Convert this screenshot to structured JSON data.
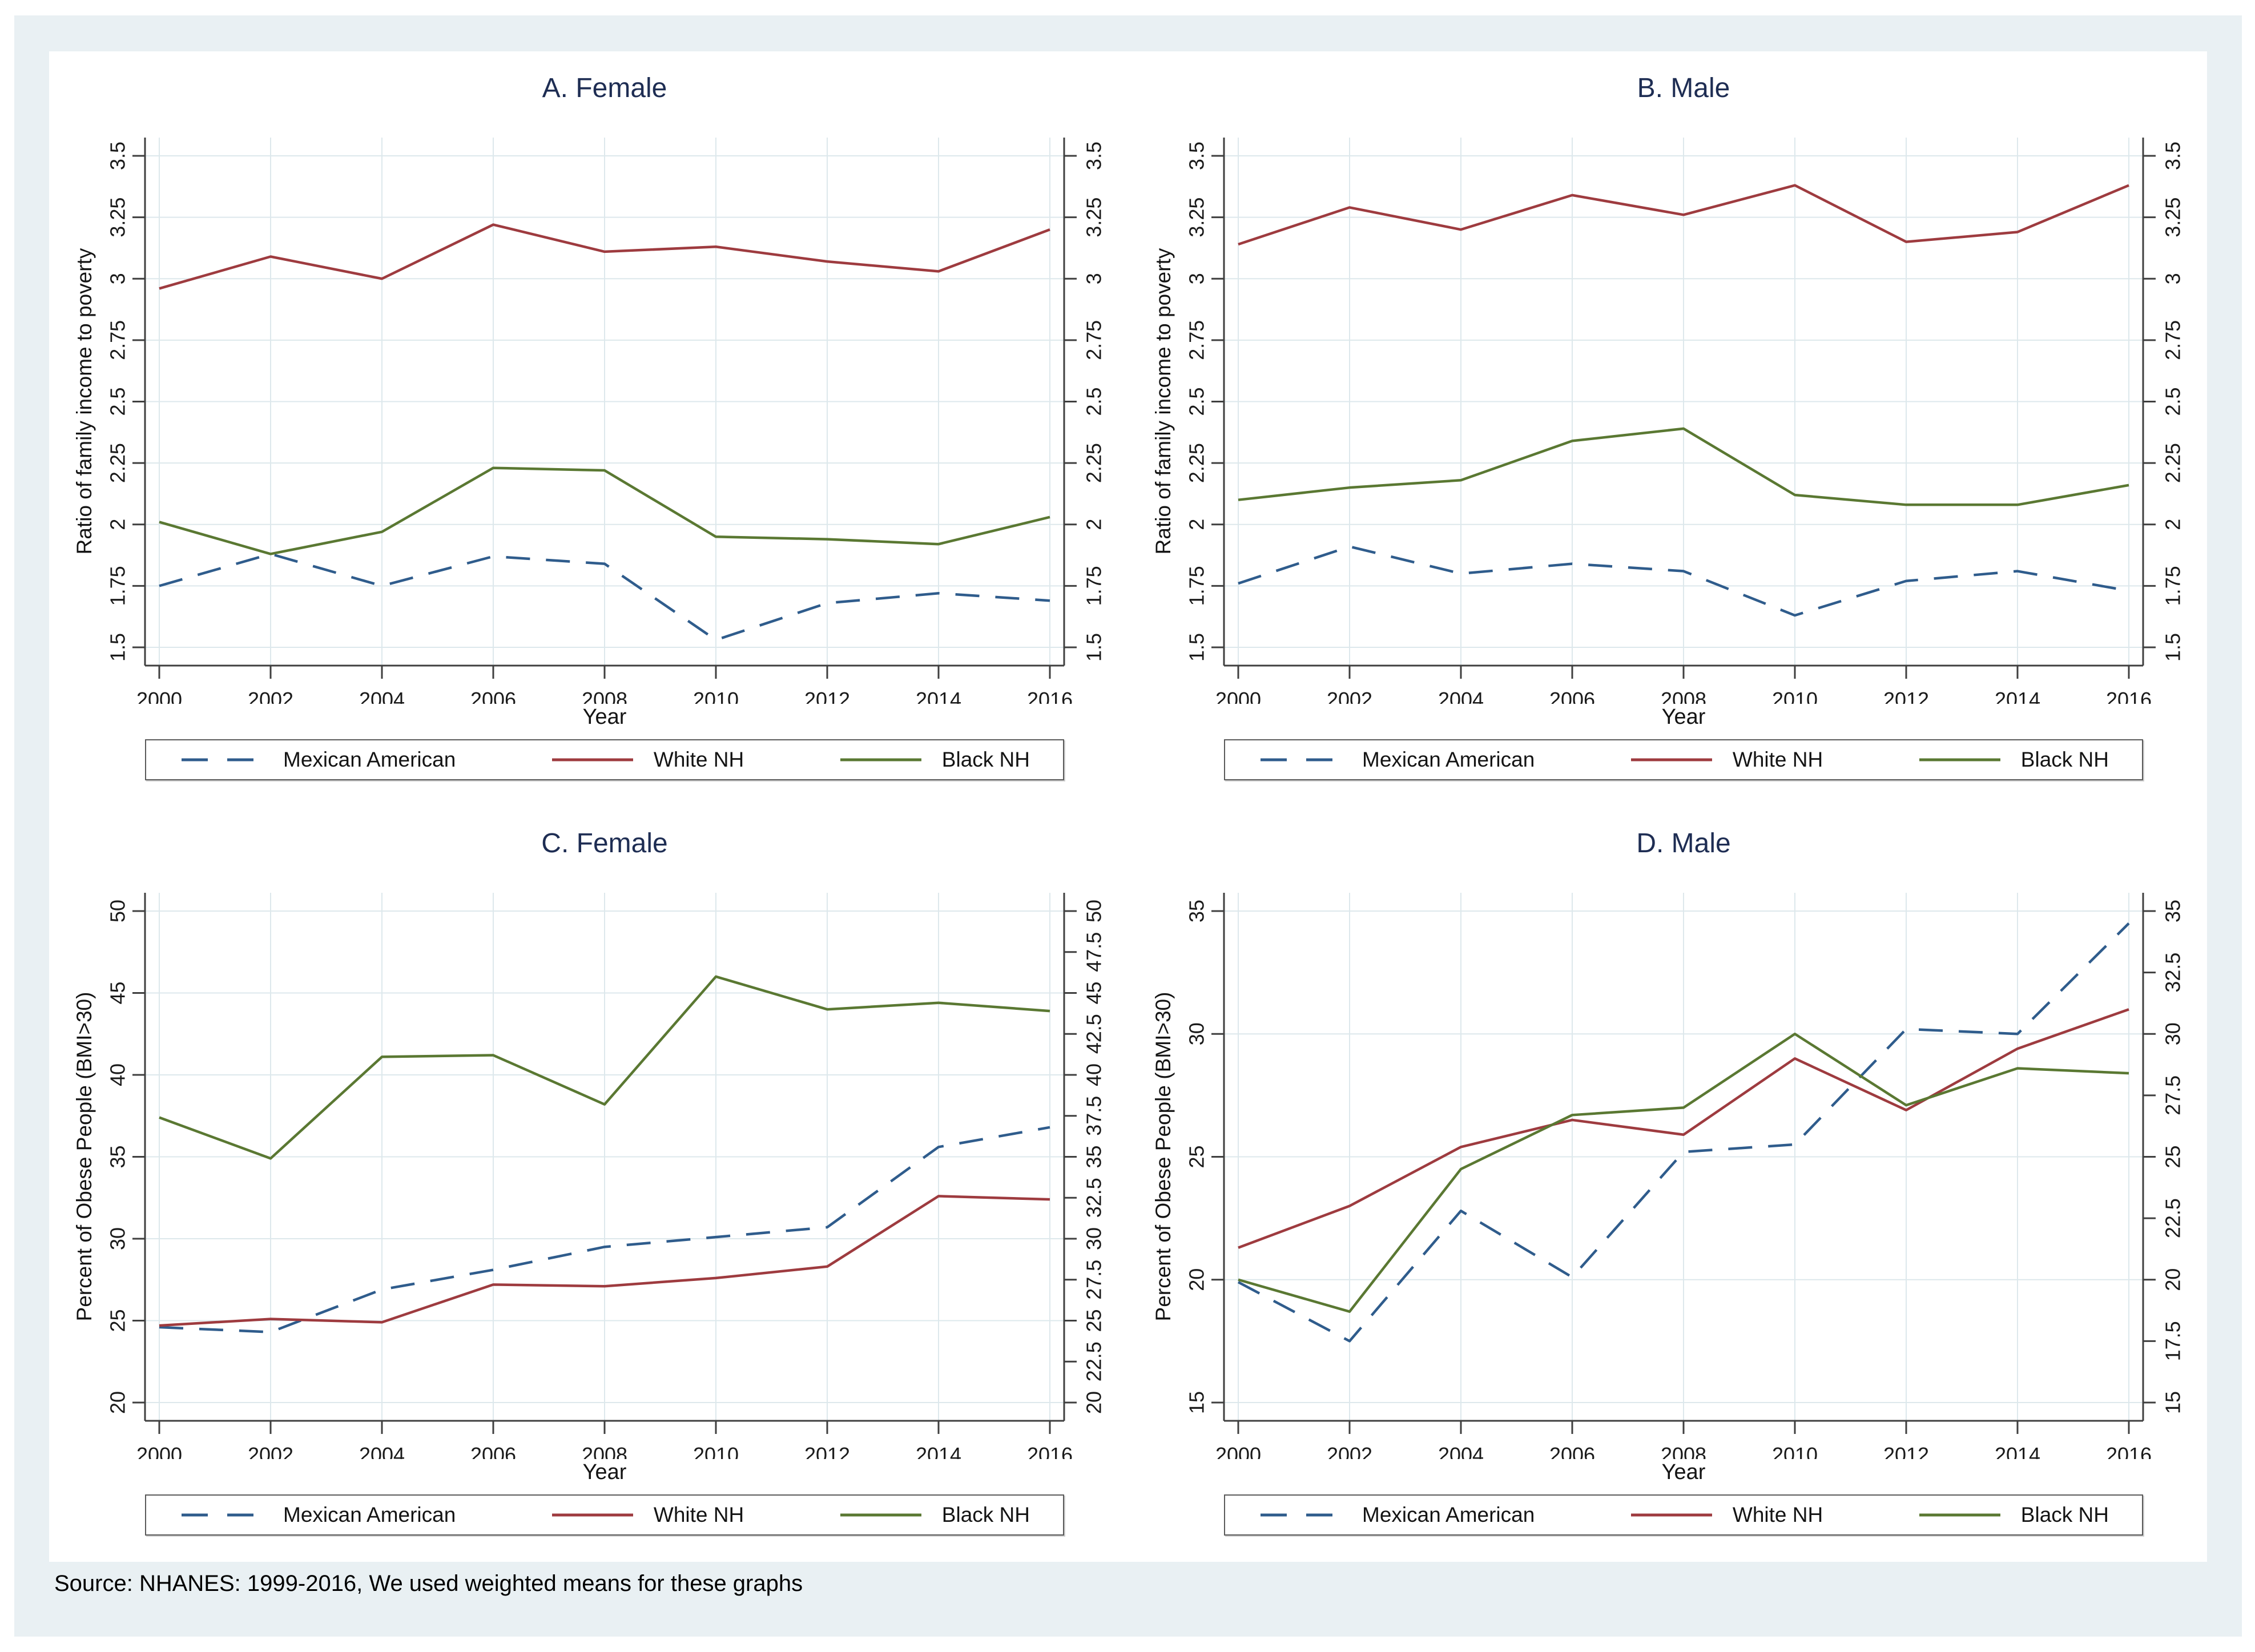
{
  "figure": {
    "background_color": "#e9f0f3",
    "plot_background": "#ffffff",
    "axis_color": "#3f3f3f",
    "grid_color": "#dde8ec",
    "title_color": "#1e2d53",
    "source_note": "Source: NHANES: 1999-2016, We used weighted means for these graphs"
  },
  "legend": {
    "position": "bottom",
    "items": [
      {
        "label": "Mexican American",
        "series_key": "mexican_american"
      },
      {
        "label": "White NH",
        "series_key": "white_nh"
      },
      {
        "label": "Black NH",
        "series_key": "black_nh"
      }
    ]
  },
  "series_styles": {
    "mexican_american": {
      "color": "#2f5c8c",
      "dashed": true
    },
    "white_nh": {
      "color": "#9e3b3f",
      "dashed": false
    },
    "black_nh": {
      "color": "#5a7832",
      "dashed": false
    }
  },
  "chart_data": [
    {
      "id": "A",
      "type": "line",
      "title": "A. Female",
      "xlabel": "Year",
      "ylabel": "Ratio of family income to poverty",
      "x": [
        2000,
        2002,
        2004,
        2006,
        2008,
        2010,
        2012,
        2014,
        2016
      ],
      "xticks": [
        2000,
        2002,
        2004,
        2006,
        2008,
        2010,
        2012,
        2014,
        2016
      ],
      "ylim": [
        1.5,
        3.5
      ],
      "yticks_left": [
        1.5,
        1.75,
        2,
        2.25,
        2.5,
        2.75,
        3,
        3.25,
        3.5
      ],
      "yticks_right": [
        1.5,
        1.75,
        2,
        2.25,
        2.5,
        2.75,
        3,
        3.25,
        3.5
      ],
      "grid_y": [
        1.5,
        1.75,
        2,
        2.25,
        2.5,
        2.75,
        3,
        3.25,
        3.5
      ],
      "grid_on": true,
      "series": [
        {
          "name": "Mexican American",
          "key": "mexican_american",
          "values": [
            1.75,
            1.88,
            1.75,
            1.87,
            1.84,
            1.53,
            1.68,
            1.72,
            1.69
          ]
        },
        {
          "name": "White NH",
          "key": "white_nh",
          "values": [
            2.96,
            3.09,
            3.0,
            3.22,
            3.11,
            3.13,
            3.07,
            3.03,
            3.2
          ]
        },
        {
          "name": "Black NH",
          "key": "black_nh",
          "values": [
            2.01,
            1.88,
            1.97,
            2.23,
            2.22,
            1.95,
            1.94,
            1.92,
            2.03
          ]
        }
      ]
    },
    {
      "id": "B",
      "type": "line",
      "title": "B. Male",
      "xlabel": "Year",
      "ylabel": "Ratio of family income to poverty",
      "x": [
        2000,
        2002,
        2004,
        2006,
        2008,
        2010,
        2012,
        2014,
        2016
      ],
      "xticks": [
        2000,
        2002,
        2004,
        2006,
        2008,
        2010,
        2012,
        2014,
        2016
      ],
      "ylim": [
        1.5,
        3.5
      ],
      "yticks_left": [
        1.5,
        1.75,
        2,
        2.25,
        2.5,
        2.75,
        3,
        3.25,
        3.5
      ],
      "yticks_right": [
        1.5,
        1.75,
        2,
        2.25,
        2.5,
        2.75,
        3,
        3.25,
        3.5
      ],
      "grid_y": [
        1.5,
        1.75,
        2,
        2.25,
        2.5,
        2.75,
        3,
        3.25,
        3.5
      ],
      "grid_on": true,
      "series": [
        {
          "name": "Mexican American",
          "key": "mexican_american",
          "values": [
            1.76,
            1.91,
            1.8,
            1.84,
            1.81,
            1.63,
            1.77,
            1.81,
            1.73
          ]
        },
        {
          "name": "White NH",
          "key": "white_nh",
          "values": [
            3.14,
            3.29,
            3.2,
            3.34,
            3.26,
            3.38,
            3.15,
            3.19,
            3.38
          ]
        },
        {
          "name": "Black NH",
          "key": "black_nh",
          "values": [
            2.1,
            2.15,
            2.18,
            2.34,
            2.39,
            2.12,
            2.08,
            2.08,
            2.16
          ]
        }
      ]
    },
    {
      "id": "C",
      "type": "line",
      "title": "C. Female",
      "xlabel": "Year",
      "ylabel": "Percent of Obese People (BMI>30)",
      "x": [
        2000,
        2002,
        2004,
        2006,
        2008,
        2010,
        2012,
        2014,
        2016
      ],
      "xticks": [
        2000,
        2002,
        2004,
        2006,
        2008,
        2010,
        2012,
        2014,
        2016
      ],
      "ylim": [
        20,
        50
      ],
      "yticks_left": [
        20,
        25,
        30,
        35,
        40,
        45,
        50
      ],
      "yticks_right": [
        20,
        22.5,
        25,
        27.5,
        30,
        32.5,
        35,
        37.5,
        40,
        42.5,
        45,
        47.5,
        50
      ],
      "grid_y": [
        20,
        25,
        30,
        35,
        40,
        45,
        50
      ],
      "grid_on": true,
      "series": [
        {
          "name": "Mexican American",
          "key": "mexican_american",
          "values": [
            24.6,
            24.3,
            26.9,
            28.1,
            29.5,
            30.1,
            30.7,
            35.6,
            36.8
          ]
        },
        {
          "name": "White NH",
          "key": "white_nh",
          "values": [
            24.7,
            25.1,
            24.9,
            27.2,
            27.1,
            27.6,
            28.3,
            32.6,
            32.4
          ]
        },
        {
          "name": "Black NH",
          "key": "black_nh",
          "values": [
            37.4,
            34.9,
            41.1,
            41.2,
            38.2,
            46.0,
            44.0,
            44.4,
            43.9
          ]
        }
      ]
    },
    {
      "id": "D",
      "type": "line",
      "title": "D. Male",
      "xlabel": "Year",
      "ylabel": "Percent of Obese People (BMI>30)",
      "x": [
        2000,
        2002,
        2004,
        2006,
        2008,
        2010,
        2012,
        2014,
        2016
      ],
      "xticks": [
        2000,
        2002,
        2004,
        2006,
        2008,
        2010,
        2012,
        2014,
        2016
      ],
      "ylim": [
        15,
        35
      ],
      "yticks_left": [
        15,
        20,
        25,
        30,
        35
      ],
      "yticks_right": [
        15,
        17.5,
        20,
        22.5,
        25,
        27.5,
        30,
        32.5,
        35
      ],
      "grid_y": [
        15,
        20,
        25,
        30,
        35
      ],
      "grid_on": true,
      "series": [
        {
          "name": "Mexican American",
          "key": "mexican_american",
          "values": [
            19.9,
            17.5,
            22.8,
            20.1,
            25.2,
            25.5,
            30.2,
            30.0,
            34.5
          ]
        },
        {
          "name": "White NH",
          "key": "white_nh",
          "values": [
            21.3,
            23.0,
            25.4,
            26.5,
            25.9,
            29.0,
            26.9,
            29.4,
            31.0
          ]
        },
        {
          "name": "Black NH",
          "key": "black_nh",
          "values": [
            20.0,
            18.7,
            24.5,
            26.7,
            27.0,
            30.0,
            27.1,
            28.6,
            28.4
          ]
        }
      ]
    }
  ]
}
